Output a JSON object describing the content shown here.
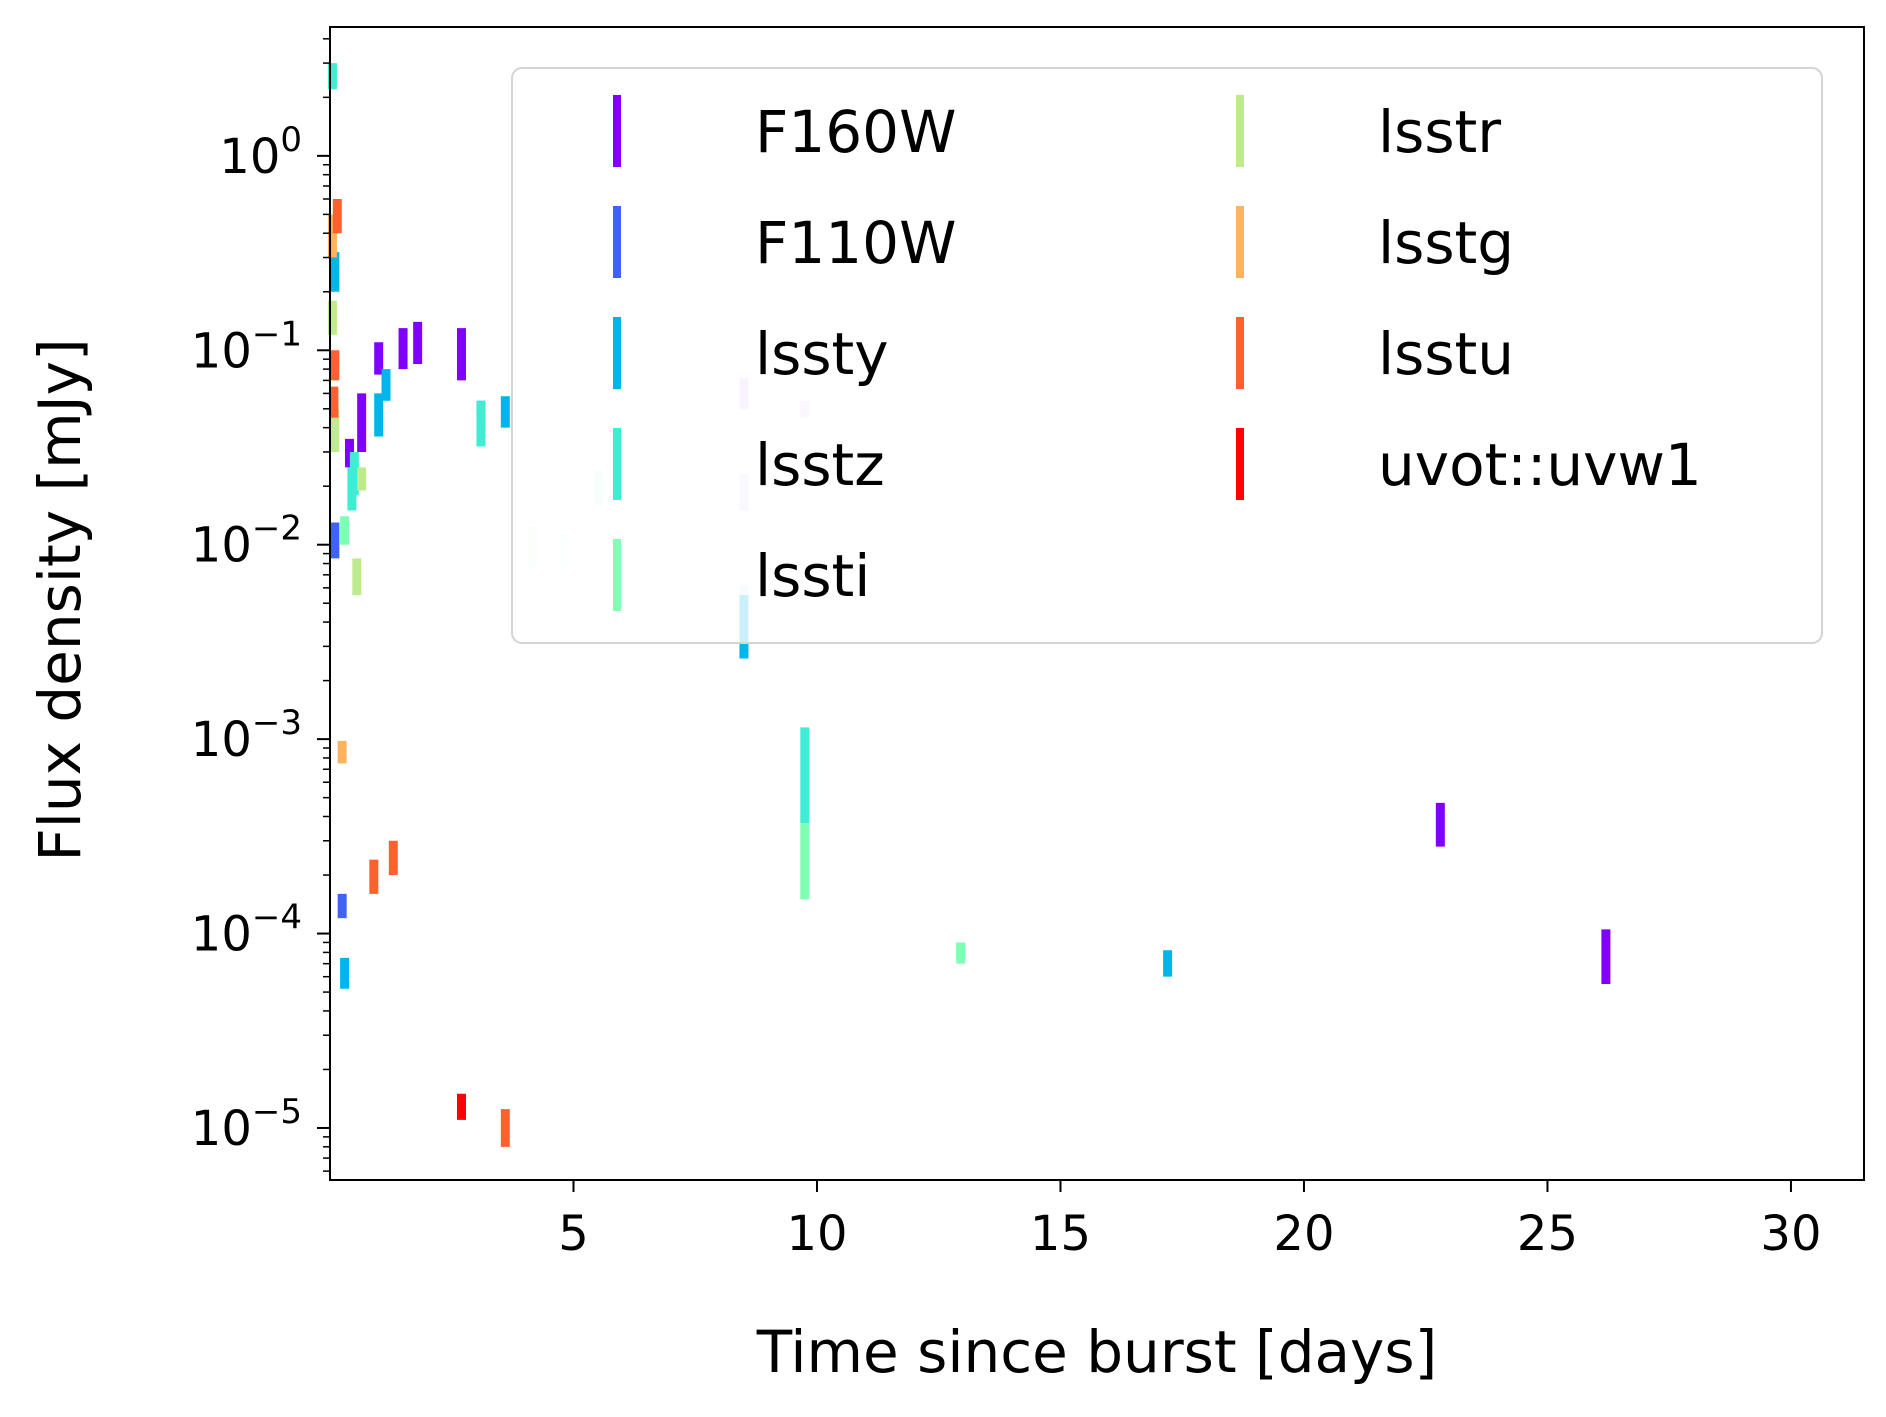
{
  "chart_data": {
    "type": "scatter",
    "title": "",
    "xlabel": "Time since burst [days]",
    "ylabel": "Flux density [mJy]",
    "xlim": [
      0,
      31.5
    ],
    "ylim": [
      5.4e-06,
      4.6
    ],
    "yscale": "log",
    "grid": false,
    "legend_position": "top-right",
    "legend_columns": 2,
    "x_ticks": [
      5,
      10,
      15,
      20,
      25,
      30
    ],
    "y_ticks": [
      {
        "value": 1e-05,
        "base": "10",
        "exp": "−5"
      },
      {
        "value": 0.0001,
        "base": "10",
        "exp": "−4"
      },
      {
        "value": 0.001,
        "base": "10",
        "exp": "−3"
      },
      {
        "value": 0.01,
        "base": "10",
        "exp": "−2"
      },
      {
        "value": 0.1,
        "base": "10",
        "exp": "−1"
      },
      {
        "value": 1,
        "base": "10",
        "exp": "0"
      }
    ],
    "series": [
      {
        "name": "F160W",
        "color": "#8000ff",
        "points": [
          {
            "x": 0.4,
            "low": 0.025,
            "high": 0.035
          },
          {
            "x": 0.65,
            "low": 0.03,
            "high": 0.06
          },
          {
            "x": 1.0,
            "low": 0.075,
            "high": 0.11
          },
          {
            "x": 1.5,
            "low": 0.08,
            "high": 0.13
          },
          {
            "x": 1.8,
            "low": 0.085,
            "high": 0.14
          },
          {
            "x": 2.7,
            "low": 0.07,
            "high": 0.13
          },
          {
            "x": 22.8,
            "low": 0.00028,
            "high": 0.00047
          },
          {
            "x": 26.2,
            "low": 5.5e-05,
            "high": 0.000105
          }
        ]
      },
      {
        "name": "F110W",
        "color": "#4062fa",
        "points": [
          {
            "x": 0.1,
            "low": 0.0085,
            "high": 0.013
          },
          {
            "x": 0.25,
            "low": 0.00012,
            "high": 0.00016
          }
        ]
      },
      {
        "name": "lssty",
        "color": "#00b5eb",
        "points": [
          {
            "x": 0.1,
            "low": 0.2,
            "high": 0.32
          },
          {
            "x": 0.3,
            "low": 5.2e-05,
            "high": 7.5e-05
          },
          {
            "x": 1.0,
            "low": 0.036,
            "high": 0.06
          },
          {
            "x": 1.15,
            "low": 0.055,
            "high": 0.08
          },
          {
            "x": 3.1,
            "low": 0.045,
            "high": 0.055
          },
          {
            "x": 3.6,
            "low": 0.04,
            "high": 0.058
          },
          {
            "x": 8.5,
            "low": 0.0026,
            "high": 0.0055
          },
          {
            "x": 17.2,
            "low": 6e-05,
            "high": 8.2e-05
          }
        ]
      },
      {
        "name": "lsstz",
        "color": "#40ecd4",
        "points": [
          {
            "x": 0.05,
            "low": 2.2,
            "high": 3.0
          },
          {
            "x": 0.45,
            "low": 0.015,
            "high": 0.025
          },
          {
            "x": 0.5,
            "low": 0.018,
            "high": 0.03
          },
          {
            "x": 3.1,
            "low": 0.032,
            "high": 0.055
          },
          {
            "x": 9.75,
            "low": 0.00037,
            "high": 0.00115
          }
        ]
      },
      {
        "name": "lssti",
        "color": "#80ffb4",
        "points": [
          {
            "x": 0.3,
            "low": 0.01,
            "high": 0.014
          },
          {
            "x": 9.75,
            "low": 0.00015,
            "high": 0.00037
          },
          {
            "x": 12.95,
            "low": 7e-05,
            "high": 9e-05
          }
        ]
      },
      {
        "name": "lsstr",
        "color": "#c0eb8d",
        "points": [
          {
            "x": 0.05,
            "low": 0.12,
            "high": 0.18
          },
          {
            "x": 0.1,
            "low": 0.03,
            "high": 0.05
          },
          {
            "x": 0.55,
            "low": 0.0055,
            "high": 0.0085
          },
          {
            "x": 0.65,
            "low": 0.019,
            "high": 0.025
          }
        ]
      },
      {
        "name": "lsstg",
        "color": "#ffb360",
        "points": [
          {
            "x": 0.05,
            "low": 0.3,
            "high": 0.5
          },
          {
            "x": 0.25,
            "low": 0.00075,
            "high": 0.00098
          }
        ]
      },
      {
        "name": "lsstu",
        "color": "#ff6030",
        "points": [
          {
            "x": 0.08,
            "low": 0.045,
            "high": 0.065
          },
          {
            "x": 0.1,
            "low": 0.07,
            "high": 0.1
          },
          {
            "x": 0.15,
            "low": 0.4,
            "high": 0.6
          },
          {
            "x": 0.9,
            "low": 0.00016,
            "high": 0.00024
          },
          {
            "x": 1.3,
            "low": 0.0002,
            "high": 0.0003
          },
          {
            "x": 3.6,
            "low": 8e-06,
            "high": 1.25e-05
          }
        ]
      },
      {
        "name": "uvot::uvw1",
        "color": "#ff0000",
        "points": [
          {
            "x": 2.7,
            "low": 1.1e-05,
            "high": 1.5e-05
          }
        ]
      }
    ],
    "faded_marks": [
      {
        "color": "#d9c4ff",
        "x": 8.5,
        "low": 0.05,
        "high": 0.072
      },
      {
        "color": "#e4d8ff",
        "x": 9.75,
        "low": 0.045,
        "high": 0.055
      },
      {
        "color": "#d9ddff",
        "x": 8.5,
        "low": 0.015,
        "high": 0.023
      },
      {
        "color": "#d4f8ee",
        "x": 5.5,
        "low": 0.016,
        "high": 0.024
      },
      {
        "color": "#e4fcf0",
        "x": 4.15,
        "low": 0.0075,
        "high": 0.0125
      },
      {
        "color": "#ebfdf3",
        "x": 4.8,
        "low": 0.0075,
        "high": 0.0115
      },
      {
        "color": "#cfeff7",
        "x": 8.5,
        "low": 0.0035,
        "high": 0.0062
      }
    ]
  }
}
